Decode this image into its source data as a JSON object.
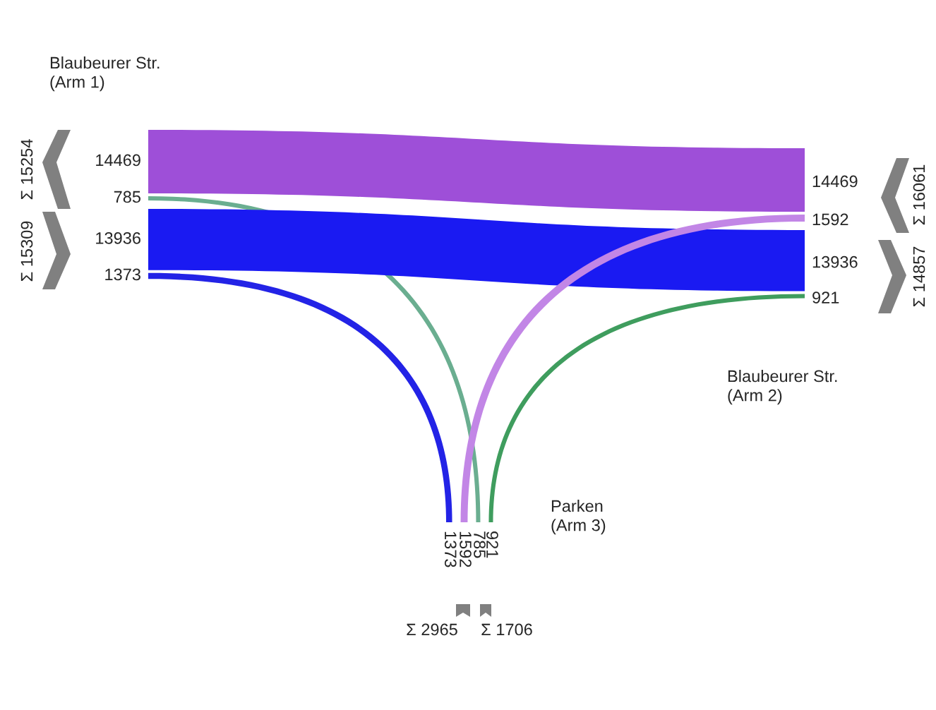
{
  "chart_data": {
    "type": "other",
    "categories": [
      "Blaubeurer Str.\n(Arm 1)",
      "Blaubeurer Str.\n(Arm 2)",
      "Parken\n(Arm 3)"
    ],
    "series": [
      {
        "values": [
          null,
          14469,
          785
        ],
        "value_labels": [
          null,
          "14469",
          "785"
        ],
        "colors": [
          null,
          "#9e4fd8",
          "#6aae90"
        ]
      },
      {
        "values": [
          13936,
          null,
          921
        ],
        "value_labels": [
          "13936",
          null,
          "921"
        ],
        "colors": [
          "#1a1af2",
          null,
          "#3f9d5e"
        ]
      },
      {
        "values": [
          1373,
          1592,
          null
        ],
        "value_labels": [
          "1373",
          "1592",
          null
        ],
        "colors": [
          "#2323e6",
          "#c286e6",
          null
        ]
      }
    ],
    "annotations": [
      "Σ 15254",
      "Σ 15309",
      "Σ 16061",
      "Σ 14857",
      "Σ 2965",
      "Σ 1706",
      "14469",
      "785",
      "13936",
      "921",
      "1373",
      "1592"
    ]
  }
}
